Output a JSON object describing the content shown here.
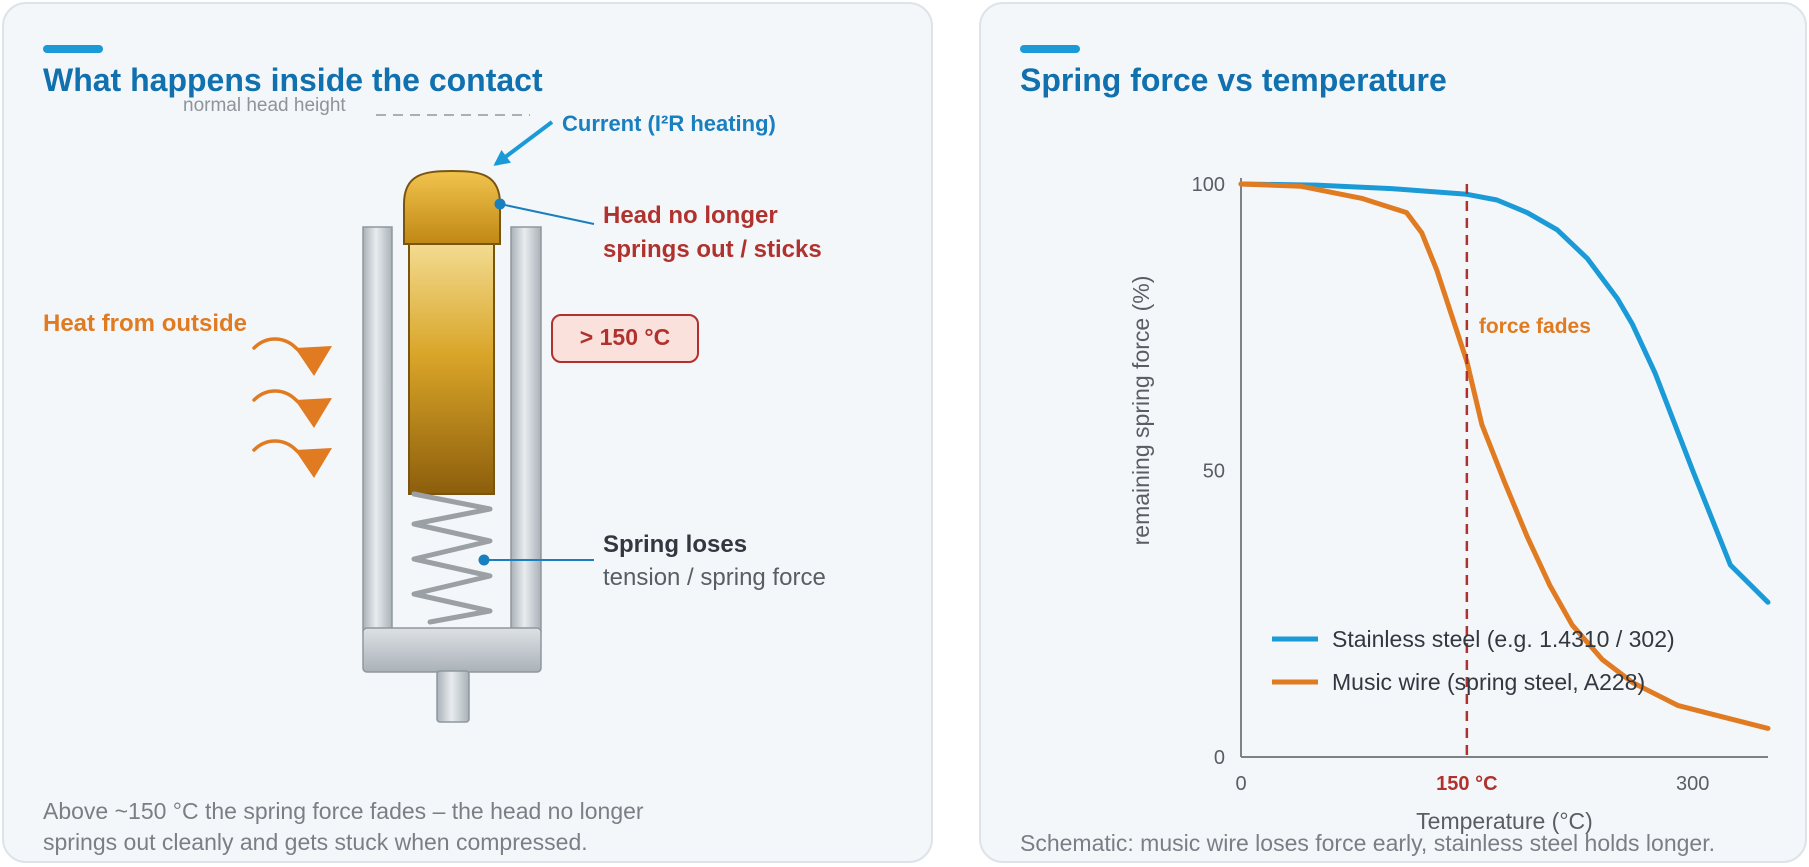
{
  "left": {
    "title": "What happens inside the contact",
    "labels": {
      "normal_head_height": "normal head height",
      "current": "Current (I²R heating)",
      "head_line1": "Head no longer",
      "head_line2": "springs out / sticks",
      "heat": "Heat from outside",
      "temp_badge": "> 150 °C",
      "spring_line1": "Spring loses",
      "spring_line2": "tension / spring force"
    },
    "caption_line1": "Above ~150 °C the spring force fades – the head no longer",
    "caption_line2": "springs out cleanly and gets stuck when compressed."
  },
  "right": {
    "title": "Spring force vs temperature",
    "caption": "Schematic: music wire loses force early, stainless steel holds longer."
  },
  "colors": {
    "title": "#1170ae",
    "current": "#1a9ad6",
    "heat": "#e07b22",
    "warning": "#b0322e",
    "stainless": "#1a9ad6",
    "music_wire": "#e07b22"
  },
  "chart_data": {
    "type": "line",
    "xlabel": "Temperature (°C)",
    "ylabel": "remaining spring force (%)",
    "xlim": [
      0,
      350
    ],
    "ylim": [
      0,
      100
    ],
    "xticks": [
      {
        "value": 0,
        "label": "0"
      },
      {
        "value": 150,
        "label": "150 °C",
        "highlight": true
      },
      {
        "value": 300,
        "label": "300"
      }
    ],
    "yticks": [
      {
        "value": 0,
        "label": "0"
      },
      {
        "value": 50,
        "label": "50"
      },
      {
        "value": 100,
        "label": "100"
      }
    ],
    "series": [
      {
        "name": "Stainless steel (e.g. 1.4310 / 302)",
        "color": "#1a9ad6",
        "points": [
          [
            0,
            100
          ],
          [
            50,
            99.8
          ],
          [
            100,
            99.2
          ],
          [
            150,
            98.2
          ],
          [
            170,
            97.2
          ],
          [
            190,
            95
          ],
          [
            210,
            92
          ],
          [
            230,
            87
          ],
          [
            250,
            80
          ],
          [
            260,
            75.5
          ],
          [
            275,
            67
          ],
          [
            300,
            50
          ],
          [
            325,
            33.5
          ],
          [
            350,
            27
          ]
        ]
      },
      {
        "name": "Music wire (spring steel, A228)",
        "color": "#e07b22",
        "points": [
          [
            0,
            100
          ],
          [
            40,
            99.6
          ],
          [
            80,
            97.5
          ],
          [
            110,
            95
          ],
          [
            120,
            91.5
          ],
          [
            130,
            85
          ],
          [
            140,
            77
          ],
          [
            150,
            69
          ],
          [
            160,
            58
          ],
          [
            175,
            48
          ],
          [
            190,
            38.5
          ],
          [
            205,
            30
          ],
          [
            220,
            23
          ],
          [
            240,
            17
          ],
          [
            260,
            13
          ],
          [
            290,
            9
          ],
          [
            320,
            7
          ],
          [
            350,
            5
          ]
        ]
      }
    ],
    "vline": {
      "x": 150
    },
    "annotation": "force fades",
    "grid": false,
    "legend_position": "bottom-left"
  }
}
